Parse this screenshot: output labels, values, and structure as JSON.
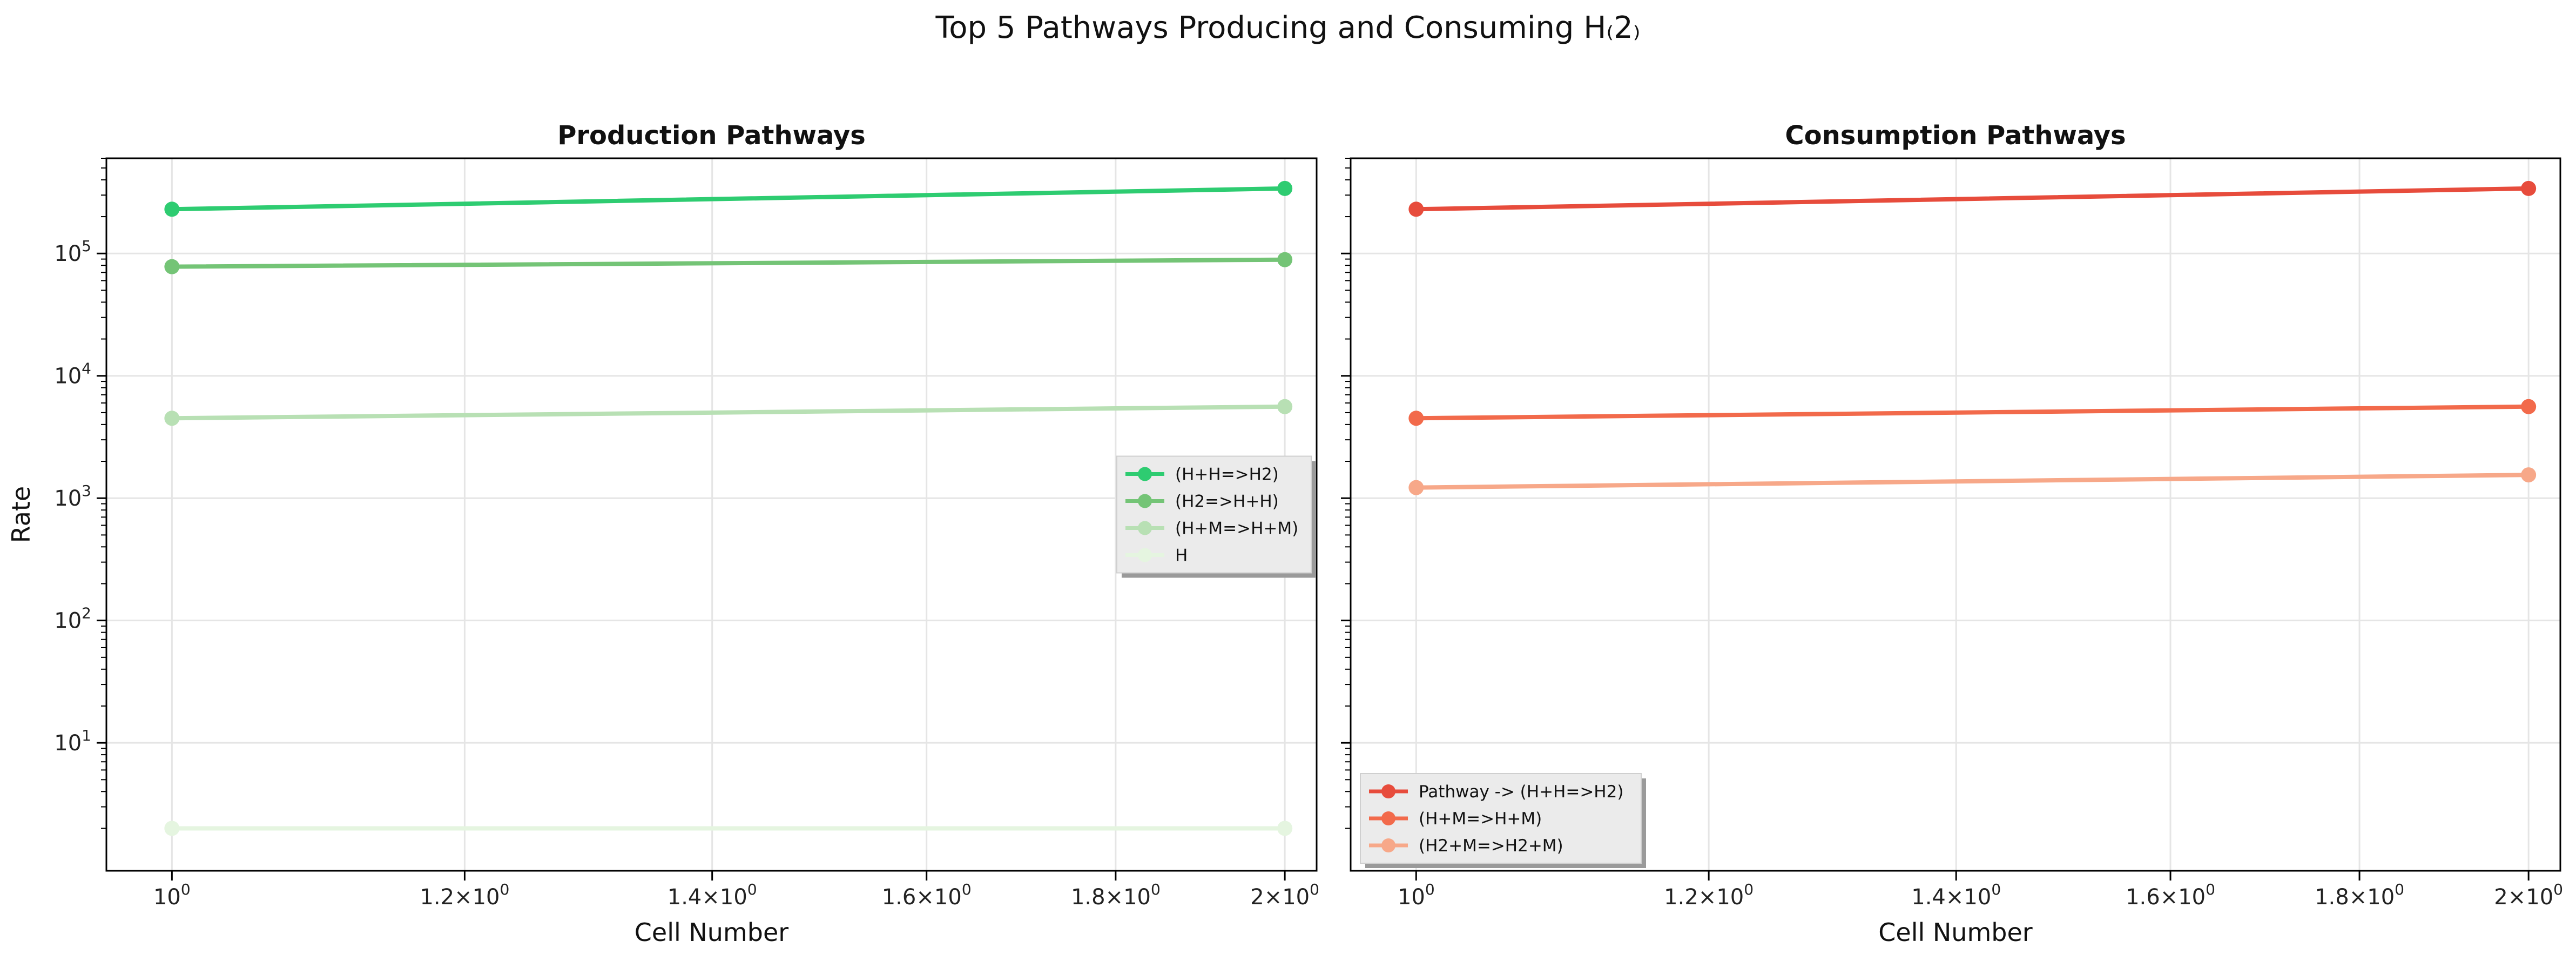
{
  "figure": {
    "suptitle": "Top 5 Pathways Producing and Consuming H₍2₎"
  },
  "colors": {
    "production": [
      "#2ecc71",
      "#74c476",
      "#b8e0b4",
      "#e5f5e0"
    ],
    "consumption": [
      "#e74c3c",
      "#f26a4b",
      "#f7a889"
    ],
    "grid": "#e5e5e5",
    "legend_bg": "#ebebeb",
    "legend_shadow": "#9a9a9a"
  },
  "chart_data": [
    {
      "type": "line",
      "title": "Production Pathways",
      "xlabel": "Cell Number",
      "ylabel": "Rate",
      "xscale": "log",
      "yscale": "log",
      "xlim": [
        0.96,
        2.04
      ],
      "ylim": [
        0.9,
        600000
      ],
      "xticks": [
        1.0,
        1.2,
        1.4,
        1.6,
        1.8,
        2.0
      ],
      "xtick_labels": [
        {
          "base": "10",
          "exp": "0"
        },
        {
          "mant": "1.2",
          "base": "10",
          "exp": "0"
        },
        {
          "mant": "1.4",
          "base": "10",
          "exp": "0"
        },
        {
          "mant": "1.6",
          "base": "10",
          "exp": "0"
        },
        {
          "mant": "1.8",
          "base": "10",
          "exp": "0"
        },
        {
          "mant": "2",
          "base": "10",
          "exp": "0"
        }
      ],
      "yticks": [
        10,
        100,
        1000,
        10000,
        100000
      ],
      "ytick_labels": [
        {
          "base": "10",
          "exp": "1"
        },
        {
          "base": "10",
          "exp": "2"
        },
        {
          "base": "10",
          "exp": "3"
        },
        {
          "base": "10",
          "exp": "4"
        },
        {
          "base": "10",
          "exp": "5"
        }
      ],
      "grid": true,
      "legend_position": "center-right",
      "x": [
        1,
        2
      ],
      "series": [
        {
          "name": "(H+H=>H2)",
          "values": [
            230000,
            340000
          ]
        },
        {
          "name": "(H2=>H+H)",
          "values": [
            78000,
            89000
          ]
        },
        {
          "name": "(H+M=>H+M)",
          "values": [
            4500,
            5600
          ]
        },
        {
          "name": "H",
          "values": [
            2,
            2
          ]
        }
      ]
    },
    {
      "type": "line",
      "title": "Consumption Pathways",
      "xlabel": "Cell Number",
      "ylabel": "",
      "xscale": "log",
      "yscale": "log",
      "xlim": [
        0.96,
        2.04
      ],
      "ylim": [
        0.9,
        600000
      ],
      "xticks": [
        1.0,
        1.2,
        1.4,
        1.6,
        1.8,
        2.0
      ],
      "xtick_labels": [
        {
          "base": "10",
          "exp": "0"
        },
        {
          "mant": "1.2",
          "base": "10",
          "exp": "0"
        },
        {
          "mant": "1.4",
          "base": "10",
          "exp": "0"
        },
        {
          "mant": "1.6",
          "base": "10",
          "exp": "0"
        },
        {
          "mant": "1.8",
          "base": "10",
          "exp": "0"
        },
        {
          "mant": "2",
          "base": "10",
          "exp": "0"
        }
      ],
      "yticks": [
        10,
        100,
        1000,
        10000,
        100000
      ],
      "ytick_labels": [],
      "grid": true,
      "legend_position": "lower-left",
      "x": [
        1,
        2
      ],
      "series": [
        {
          "name": "Pathway -> (H+H=>H2)",
          "values": [
            230000,
            340000
          ]
        },
        {
          "name": "(H+M=>H+M)",
          "values": [
            4500,
            5600
          ]
        },
        {
          "name": "(H2+M=>H2+M)",
          "values": [
            1220,
            1550
          ]
        }
      ]
    }
  ]
}
